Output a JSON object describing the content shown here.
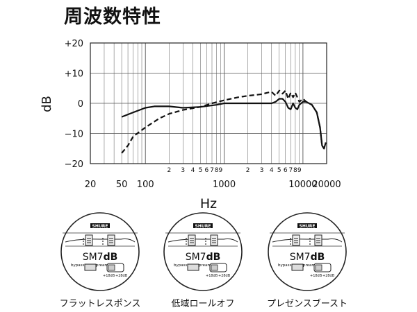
{
  "page": {
    "title": "周波数特性"
  },
  "chart_data": {
    "type": "line",
    "xscale": "log",
    "xlim": [
      20,
      20000
    ],
    "ylim": [
      -20,
      20
    ],
    "xlabel": "Hz",
    "ylabel": "dB",
    "grid": true,
    "y_ticks": [
      20,
      10,
      0,
      -10,
      -20
    ],
    "y_tick_labels": [
      "+20",
      "+10",
      "0",
      "−10",
      "−20"
    ],
    "x_major_ticks": [
      20,
      50,
      100,
      1000,
      10000,
      20000
    ],
    "x_major_labels": [
      "20",
      "50",
      "100",
      "1000",
      "10000",
      "20000"
    ],
    "x_minor_labels": [
      {
        "x": 200,
        "label": "2"
      },
      {
        "x": 300,
        "label": "3"
      },
      {
        "x": 400,
        "label": "4"
      },
      {
        "x": 500,
        "label": "5"
      },
      {
        "x": 600,
        "label": "6"
      },
      {
        "x": 700,
        "label": "7"
      },
      {
        "x": 800,
        "label": "8"
      },
      {
        "x": 900,
        "label": "9"
      },
      {
        "x": 2000,
        "label": "2"
      },
      {
        "x": 3000,
        "label": "3"
      },
      {
        "x": 4000,
        "label": "4"
      },
      {
        "x": 5000,
        "label": "5"
      },
      {
        "x": 6000,
        "label": "6"
      },
      {
        "x": 7000,
        "label": "7"
      },
      {
        "x": 8000,
        "label": "8"
      },
      {
        "x": 9000,
        "label": "9"
      }
    ],
    "series": [
      {
        "style": "solid",
        "x": [
          50,
          70,
          100,
          130,
          200,
          300,
          500,
          800,
          1000,
          2000,
          3000,
          4000,
          4500,
          5000,
          5500,
          6000,
          6500,
          7000,
          7500,
          8000,
          8500,
          9000,
          10000,
          11000,
          13000,
          15000,
          16500,
          17500,
          18500,
          19500
        ],
        "y": [
          -4.5,
          -3,
          -1.5,
          -1,
          -1,
          -1.5,
          -1.2,
          -0.5,
          0,
          0,
          0,
          0,
          0.5,
          1.5,
          1.5,
          0.5,
          -1.5,
          -2,
          0,
          -1.5,
          -2,
          -0.5,
          0.5,
          0.5,
          -0.5,
          -3,
          -8,
          -14,
          -15,
          -13
        ]
      },
      {
        "style": "dashed",
        "x": [
          50,
          60,
          70,
          100,
          150,
          200,
          300,
          500,
          700,
          1000,
          1500,
          2000,
          3000,
          3500,
          4000,
          4500,
          5000,
          5500,
          6000,
          6500,
          7000,
          7500,
          8000,
          9000,
          10000,
          11000,
          13000,
          15000,
          16500,
          17500,
          18500,
          19500
        ],
        "y": [
          -16.5,
          -14,
          -11,
          -8,
          -5,
          -3.5,
          -2.2,
          -1.2,
          0,
          1,
          2,
          2.5,
          3,
          3.5,
          3.8,
          2.5,
          4.2,
          3.2,
          4.2,
          1.5,
          3.5,
          2,
          3.5,
          0.5,
          1.5,
          0.5,
          -0.5,
          -3,
          -8,
          -14,
          -15,
          -13
        ]
      }
    ]
  },
  "mics": [
    {
      "brand": "SHURE",
      "model_main": "SM7",
      "model_bold": "dB",
      "switch_left": "bypass",
      "switch_right": "preamp",
      "gain_low": "+18dB",
      "gain_high": "+28dB",
      "label": "フラットレスポンス"
    },
    {
      "brand": "SHURE",
      "model_main": "SM7",
      "model_bold": "dB",
      "switch_left": "bypass",
      "switch_right": "preamp",
      "gain_low": "+18dB",
      "gain_high": "+28dB",
      "label": "低域ロールオフ"
    },
    {
      "brand": "SHURE",
      "model_main": "SM7",
      "model_bold": "dB",
      "switch_left": "bypass",
      "switch_right": "preamp",
      "gain_low": "+18dB",
      "gain_high": "+28dB",
      "label": "プレゼンスブースト"
    }
  ]
}
